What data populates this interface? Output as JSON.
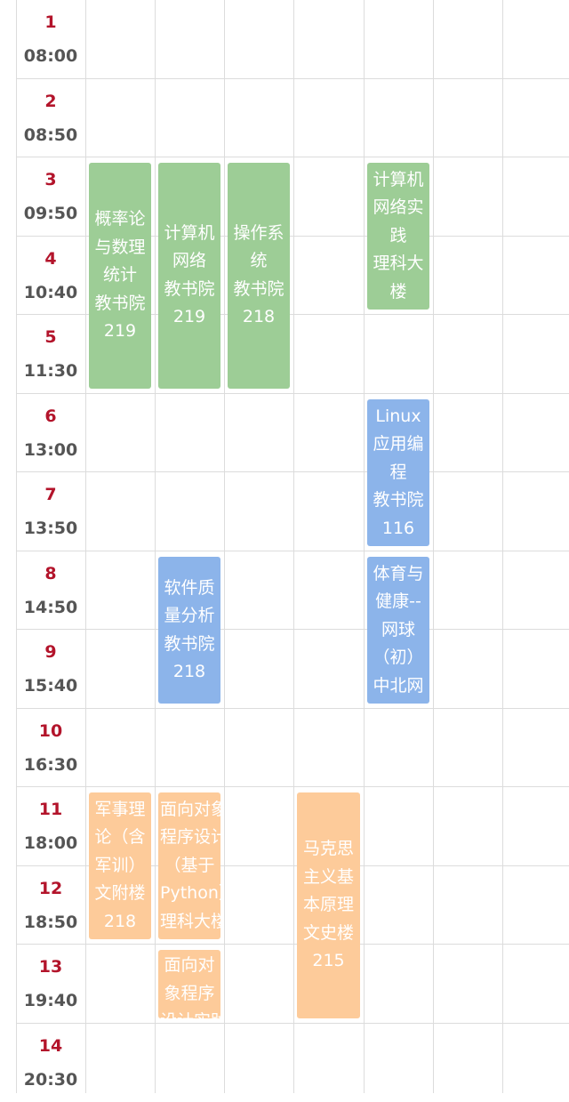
{
  "periods": [
    {
      "num": "1",
      "time": "08:00"
    },
    {
      "num": "2",
      "time": "08:50"
    },
    {
      "num": "3",
      "time": "09:50"
    },
    {
      "num": "4",
      "time": "10:40"
    },
    {
      "num": "5",
      "time": "11:30"
    },
    {
      "num": "6",
      "time": "13:00"
    },
    {
      "num": "7",
      "time": "13:50"
    },
    {
      "num": "8",
      "time": "14:50"
    },
    {
      "num": "9",
      "time": "15:40"
    },
    {
      "num": "10",
      "time": "16:30"
    },
    {
      "num": "11",
      "time": "18:00"
    },
    {
      "num": "12",
      "time": "18:50"
    },
    {
      "num": "13",
      "time": "19:40"
    },
    {
      "num": "14",
      "time": "20:30"
    }
  ],
  "colors": {
    "green": "#9dcd96",
    "blue": "#8cb4ea",
    "orange": "#fdcb9a",
    "period_number": "#b3142b",
    "period_time": "#555555"
  },
  "courses": [
    {
      "lines": [
        "概率论",
        "与数理",
        "统计",
        "教书院",
        "219"
      ],
      "color": "green",
      "day": 1,
      "start_period": 3,
      "end_period": 5
    },
    {
      "lines": [
        "计算机",
        "网络",
        "教书院",
        "219"
      ],
      "color": "green",
      "day": 2,
      "start_period": 3,
      "end_period": 5
    },
    {
      "lines": [
        "操作系",
        "统",
        "教书院",
        "218"
      ],
      "color": "green",
      "day": 3,
      "start_period": 3,
      "end_period": 5
    },
    {
      "lines": [
        "计算机",
        "网络实",
        "践",
        "理科大",
        "楼"
      ],
      "color": "green",
      "day": 5,
      "start_period": 3,
      "end_period": 4
    },
    {
      "lines": [
        "Linux",
        "应用编",
        "程",
        "教书院",
        "116"
      ],
      "color": "blue",
      "day": 5,
      "start_period": 6,
      "end_period": 7
    },
    {
      "lines": [
        "软件质",
        "量分析",
        "教书院",
        "218"
      ],
      "color": "blue",
      "day": 2,
      "start_period": 8,
      "end_period": 9
    },
    {
      "lines": [
        "体育与",
        "健康--",
        "网球",
        "（初）",
        "中北网"
      ],
      "color": "blue",
      "day": 5,
      "start_period": 8,
      "end_period": 9
    },
    {
      "lines": [
        "军事理",
        "论（含",
        "军训）",
        "文附楼",
        "218"
      ],
      "color": "orange",
      "day": 1,
      "start_period": 11,
      "end_period": 12
    },
    {
      "lines": [
        "面向对象",
        "程序设计",
        "（基于",
        "Python）",
        "理科大楼"
      ],
      "color": "orange",
      "day": 2,
      "start_period": 11,
      "end_period": 12
    },
    {
      "lines": [
        "面向对",
        "象程序",
        "设计实践"
      ],
      "color": "orange",
      "day": 2,
      "start_period": 13,
      "end_period": 13
    },
    {
      "lines": [
        "马克思",
        "主义基",
        "本原理",
        "文史楼",
        "215"
      ],
      "color": "orange",
      "day": 4,
      "start_period": 11,
      "end_period": 13
    }
  ]
}
